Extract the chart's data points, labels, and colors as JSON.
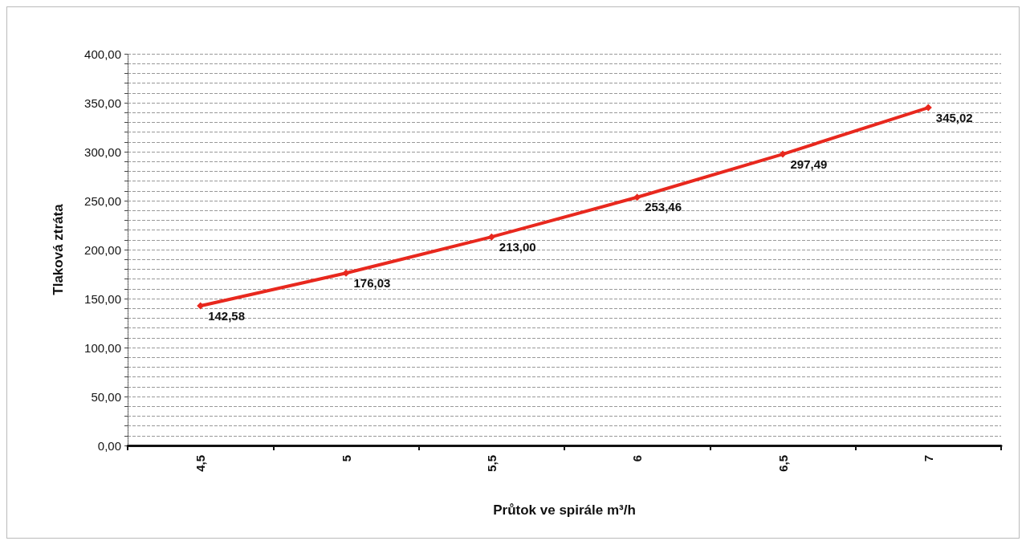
{
  "chart_data": {
    "type": "line",
    "xlabel": "Průtok ve spirále m³/h",
    "ylabel": "Tlaková ztráta",
    "categories": [
      "4,5",
      "5",
      "5,5",
      "6",
      "6,5",
      "7"
    ],
    "series": [
      {
        "color": "#e8281e",
        "values": [
          142.58,
          176.03,
          213.0,
          253.46,
          297.49,
          345.02
        ],
        "value_labels": [
          "142,58",
          "176,03",
          "213,00",
          "253,46",
          "297,49",
          "345,02"
        ]
      }
    ],
    "ylim": [
      0,
      400
    ],
    "yticks": [
      "0,00",
      null,
      null,
      null,
      null,
      "50,00",
      null,
      null,
      null,
      null,
      "100,00",
      null,
      null,
      null,
      null,
      "150,00",
      null,
      null,
      null,
      null,
      "200,00",
      null,
      null,
      null,
      null,
      "250,00",
      null,
      null,
      null,
      null,
      "300,00",
      null,
      null,
      null,
      null,
      "350,00",
      null,
      null,
      null,
      null,
      "400,00"
    ],
    "grid": "y",
    "marker": "diamond",
    "line_style": "solid"
  }
}
